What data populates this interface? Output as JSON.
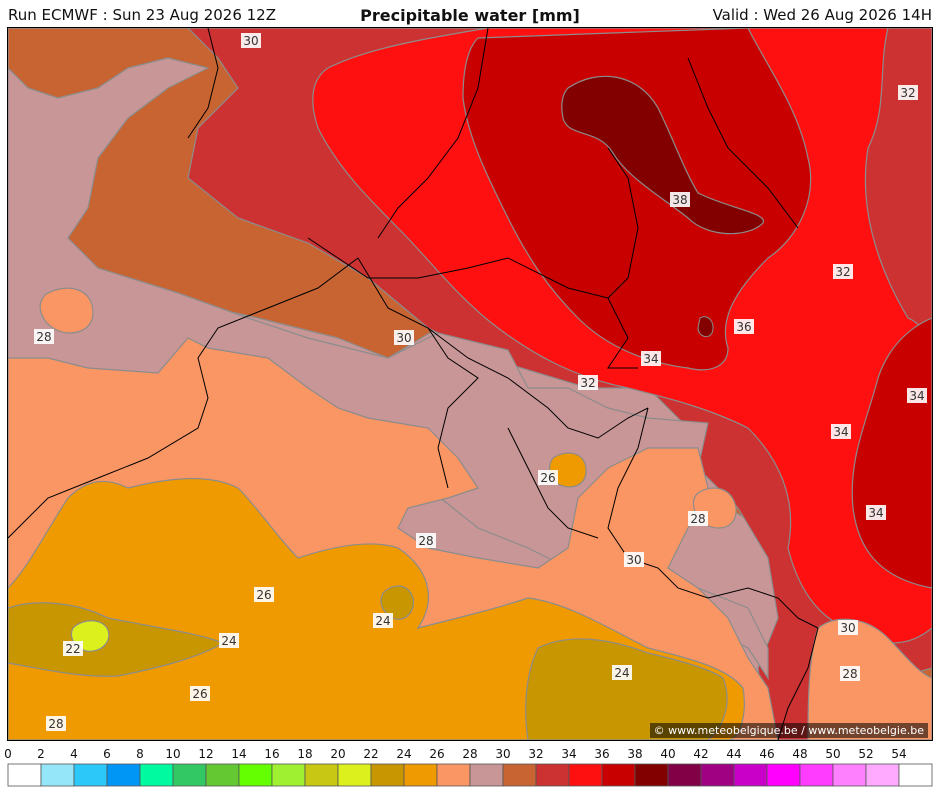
{
  "header": {
    "run": "Run ECMWF : Sun 23 Aug 2026 12Z",
    "title": "Precipitable water [mm]",
    "valid": "Valid : Wed 26 Aug 2026 14H"
  },
  "credit": "© www.meteobelgique.be / www.meteobelgie.be",
  "legend": {
    "ticks": [
      "0",
      "2",
      "4",
      "6",
      "8",
      "10",
      "12",
      "14",
      "16",
      "18",
      "20",
      "22",
      "24",
      "26",
      "28",
      "30",
      "32",
      "34",
      "36",
      "38",
      "40",
      "42",
      "44",
      "46",
      "48",
      "50",
      "52",
      "54"
    ],
    "colors": [
      "#ffffff",
      "#96e6fa",
      "#2dc8fa",
      "#0096f5",
      "#00faa0",
      "#32c864",
      "#64c832",
      "#64ff00",
      "#a0f032",
      "#c8c814",
      "#dcf01e",
      "#c89600",
      "#ee9a00",
      "#fa9664",
      "#c89696",
      "#c86432",
      "#cd3232",
      "#ff1010",
      "#c80000",
      "#820000",
      "#820046",
      "#a00082",
      "#c800c8",
      "#ff00ff",
      "#ff3cff",
      "#ff80ff",
      "#ffaaff",
      "#ffffff"
    ]
  },
  "contour_labels": [
    "30",
    "32",
    "38",
    "32",
    "36",
    "34",
    "28",
    "30",
    "32",
    "34",
    "34",
    "34",
    "26",
    "28",
    "28",
    "30",
    "26",
    "24",
    "24",
    "22",
    "24",
    "26",
    "30",
    "28",
    "28"
  ]
}
